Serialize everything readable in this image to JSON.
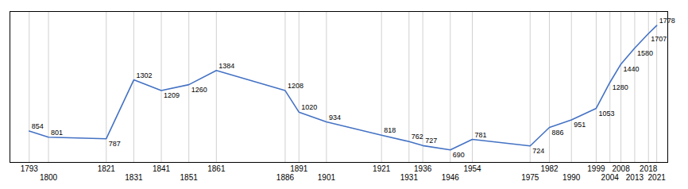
{
  "chart_data": {
    "type": "line",
    "x": [
      1793,
      1800,
      1821,
      1831,
      1841,
      1851,
      1861,
      1886,
      1891,
      1901,
      1921,
      1931,
      1936,
      1946,
      1954,
      1975,
      1982,
      1990,
      1999,
      2004,
      2008,
      2013,
      2018,
      2021
    ],
    "values": [
      854,
      801,
      787,
      1302,
      1209,
      1260,
      1384,
      1208,
      1020,
      934,
      818,
      762,
      727,
      690,
      781,
      724,
      886,
      951,
      1053,
      1280,
      1440,
      1580,
      1707,
      1778
    ],
    "color": "#4472C4",
    "xlim": [
      1786,
      2025
    ],
    "ylim": [
      580,
      1900
    ],
    "xticks": [
      1793,
      1800,
      1821,
      1831,
      1841,
      1851,
      1861,
      1886,
      1891,
      1901,
      1921,
      1931,
      1936,
      1946,
      1954,
      1975,
      1982,
      1990,
      1999,
      2004,
      2008,
      2013,
      2018,
      2021
    ],
    "yticks": [],
    "grid": true,
    "data_labels": true,
    "tick_labels": "x"
  }
}
